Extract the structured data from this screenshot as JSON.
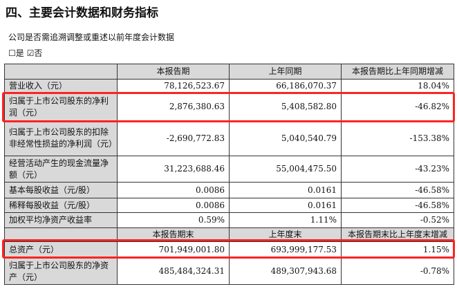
{
  "title": "四、主要会计数据和财务指标",
  "question": "公司是否需追溯调整或重述以前年度会计数据",
  "options": {
    "yes": "☐是",
    "no": "☑否"
  },
  "highlight_color": "#ff2222",
  "table1": {
    "headers": [
      "",
      "本报告期",
      "上年同期",
      "本报告期比上年同期增减"
    ],
    "rows": [
      [
        "营业收入（元）",
        "78,126,523.67",
        "66,186,070.37",
        "18.04%"
      ],
      [
        "归属于上市公司股东的净利润（元）",
        "2,876,380.63",
        "5,408,582.80",
        "-46.82%"
      ],
      [
        "归属于上市公司股东的扣除非经常性损益的净利润（元）",
        "-2,690,772.83",
        "5,040,540.79",
        "-153.38%"
      ],
      [
        "经营活动产生的现金流量净额（元）",
        "31,223,688.46",
        "55,004,475.50",
        "-43.23%"
      ],
      [
        "基本每股收益（元/股）",
        "0.0086",
        "0.0161",
        "-46.58%"
      ],
      [
        "稀释每股收益（元/股）",
        "0.0086",
        "0.0161",
        "-46.58%"
      ],
      [
        "加权平均净资产收益率",
        "0.59%",
        "1.11%",
        "-0.52%"
      ]
    ]
  },
  "table2": {
    "headers": [
      "",
      "本报告期末",
      "上年度末",
      "本报告期末比上年度末增减"
    ],
    "rows": [
      [
        "总资产（元）",
        "701,949,001.80",
        "693,999,177.53",
        "1.15%"
      ],
      [
        "归属于上市公司股东的净资产（元）",
        "485,484,324.31",
        "489,307,943.68",
        "-0.78%"
      ]
    ]
  }
}
